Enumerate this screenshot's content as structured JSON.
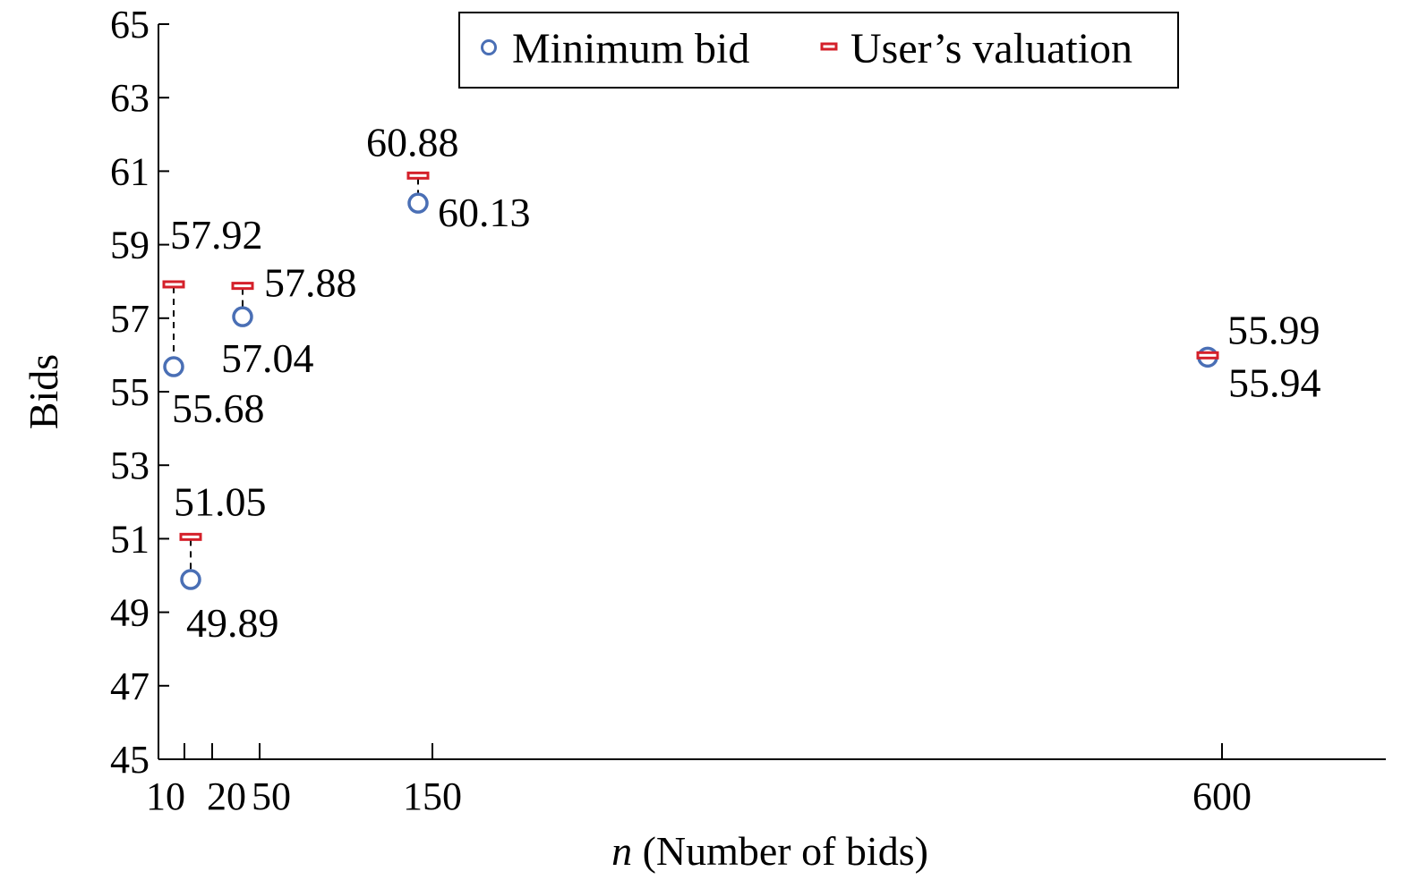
{
  "chart_data": {
    "type": "scatter",
    "xlabel_var": "n",
    "xlabel_rest": " (Number of bids)",
    "ylabel": "Bids",
    "ylim": [
      45,
      65
    ],
    "y_ticks": [
      "45",
      "47",
      "49",
      "51",
      "53",
      "55",
      "57",
      "59",
      "61",
      "63",
      "65"
    ],
    "x_ticks": [
      "10",
      "20",
      "50",
      "150",
      "600"
    ],
    "grid": false,
    "legend_position": "top-right",
    "colors": {
      "minimum_bid": "#4a6fb5",
      "valuation": "#d4202a"
    },
    "series": [
      {
        "name": "Minimum bid",
        "values": [
          55.68,
          49.89,
          57.04,
          60.13,
          55.94
        ]
      },
      {
        "name": "User’s valuation",
        "values": [
          57.92,
          51.05,
          57.88,
          60.88,
          55.99
        ]
      }
    ],
    "points": [
      {
        "min_label": "55.68",
        "val_label": "57.92"
      },
      {
        "min_label": "49.89",
        "val_label": "51.05"
      },
      {
        "min_label": "57.04",
        "val_label": "57.88"
      },
      {
        "min_label": "60.13",
        "val_label": "60.88"
      },
      {
        "min_label": "55.94",
        "val_label": "55.99"
      }
    ]
  }
}
